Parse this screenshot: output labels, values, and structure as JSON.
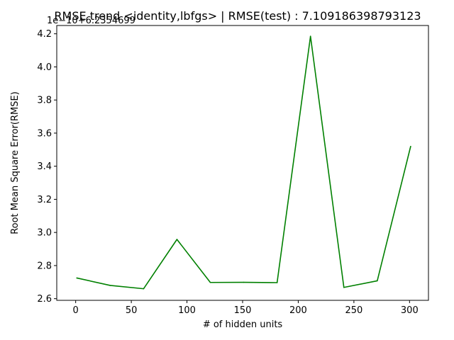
{
  "chart_data": {
    "type": "line",
    "title": "RMSE trend <identity,lbfgs> | RMSE(test) : 7.109186398793123",
    "xlabel": "# of hidden units",
    "ylabel": "Root Mean Square Error(RMSE)",
    "y_offset_text": "1e−10+6.2354699",
    "x": [
      1,
      31,
      61,
      91,
      121,
      151,
      181,
      211,
      241,
      271,
      301
    ],
    "series": [
      {
        "values": [
          2.725,
          2.68,
          2.66,
          2.958,
          2.698,
          2.699,
          2.697,
          4.185,
          2.668,
          2.708,
          3.52
        ],
        "color": "#008000"
      }
    ],
    "xlim": [
      -17,
      317
    ],
    "ylim": [
      2.59,
      4.25
    ],
    "xticks": [
      0,
      50,
      100,
      150,
      200,
      250,
      300
    ],
    "xtick_labels": [
      "0",
      "50",
      "100",
      "150",
      "200",
      "250",
      "300"
    ],
    "yticks": [
      2.6,
      2.8,
      3.0,
      3.2,
      3.4,
      3.6,
      3.8,
      4.0,
      4.2
    ],
    "ytick_labels": [
      "2.6",
      "2.8",
      "3.0",
      "3.2",
      "3.4",
      "3.6",
      "3.8",
      "4.0",
      "4.2"
    ],
    "grid": false,
    "legend": "none"
  }
}
